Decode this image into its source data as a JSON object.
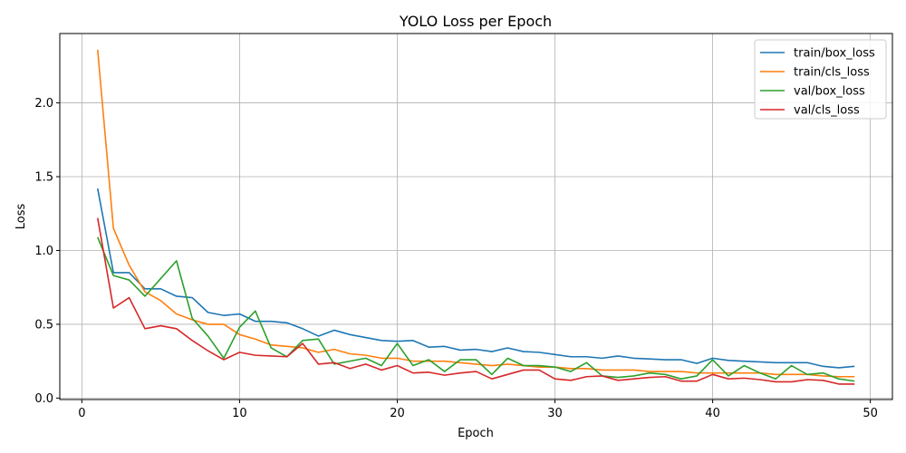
{
  "chart_data": {
    "type": "line",
    "title": "YOLO Loss per Epoch",
    "xlabel": "Epoch",
    "ylabel": "Loss",
    "xlim": [
      -1.4,
      51.4
    ],
    "ylim": [
      -0.01,
      2.47
    ],
    "xticks": [
      0,
      10,
      20,
      30,
      40,
      50
    ],
    "yticks": [
      0.0,
      0.5,
      1.0,
      1.5,
      2.0
    ],
    "xtick_labels": [
      "0",
      "10",
      "20",
      "30",
      "40",
      "50"
    ],
    "ytick_labels": [
      "0.0",
      "0.5",
      "1.0",
      "1.5",
      "2.0"
    ],
    "grid": true,
    "legend_position": "top-right",
    "x": [
      1,
      2,
      3,
      4,
      5,
      6,
      7,
      8,
      9,
      10,
      11,
      12,
      13,
      14,
      15,
      16,
      17,
      18,
      19,
      20,
      21,
      22,
      23,
      24,
      25,
      26,
      27,
      28,
      29,
      30,
      31,
      32,
      33,
      34,
      35,
      36,
      37,
      38,
      39,
      40,
      41,
      42,
      43,
      44,
      45,
      46,
      47,
      48,
      49
    ],
    "series": [
      {
        "name": "train/box_loss",
        "color": "#1f77b4",
        "values": [
          1.42,
          0.85,
          0.85,
          0.74,
          0.74,
          0.69,
          0.68,
          0.58,
          0.56,
          0.57,
          0.52,
          0.52,
          0.51,
          0.47,
          0.42,
          0.46,
          0.43,
          0.41,
          0.39,
          0.385,
          0.39,
          0.345,
          0.35,
          0.325,
          0.33,
          0.315,
          0.34,
          0.315,
          0.31,
          0.295,
          0.28,
          0.28,
          0.27,
          0.285,
          0.27,
          0.265,
          0.26,
          0.26,
          0.235,
          0.27,
          0.255,
          0.25,
          0.245,
          0.24,
          0.24,
          0.24,
          0.215,
          0.205,
          0.215
        ]
      },
      {
        "name": "train/cls_loss",
        "color": "#ff7f0e",
        "values": [
          2.36,
          1.15,
          0.9,
          0.72,
          0.66,
          0.57,
          0.53,
          0.5,
          0.5,
          0.43,
          0.4,
          0.36,
          0.35,
          0.34,
          0.31,
          0.33,
          0.3,
          0.29,
          0.27,
          0.27,
          0.25,
          0.25,
          0.25,
          0.24,
          0.23,
          0.22,
          0.23,
          0.22,
          0.21,
          0.21,
          0.2,
          0.2,
          0.19,
          0.19,
          0.19,
          0.18,
          0.18,
          0.18,
          0.17,
          0.17,
          0.17,
          0.17,
          0.17,
          0.16,
          0.16,
          0.16,
          0.15,
          0.145,
          0.145
        ]
      },
      {
        "name": "val/box_loss",
        "color": "#2ca02c",
        "values": [
          1.09,
          0.83,
          0.8,
          0.69,
          0.81,
          0.93,
          0.54,
          0.42,
          0.27,
          0.48,
          0.59,
          0.34,
          0.28,
          0.39,
          0.4,
          0.23,
          0.25,
          0.27,
          0.22,
          0.37,
          0.22,
          0.26,
          0.18,
          0.26,
          0.26,
          0.16,
          0.27,
          0.22,
          0.22,
          0.21,
          0.18,
          0.24,
          0.15,
          0.14,
          0.15,
          0.17,
          0.16,
          0.13,
          0.15,
          0.26,
          0.15,
          0.22,
          0.17,
          0.13,
          0.22,
          0.16,
          0.17,
          0.13,
          0.115
        ]
      },
      {
        "name": "val/cls_loss",
        "color": "#d62728",
        "values": [
          1.22,
          0.61,
          0.68,
          0.47,
          0.49,
          0.47,
          0.39,
          0.32,
          0.26,
          0.31,
          0.29,
          0.285,
          0.28,
          0.37,
          0.23,
          0.24,
          0.2,
          0.23,
          0.19,
          0.22,
          0.17,
          0.175,
          0.155,
          0.17,
          0.18,
          0.13,
          0.16,
          0.19,
          0.19,
          0.13,
          0.12,
          0.145,
          0.15,
          0.12,
          0.13,
          0.14,
          0.145,
          0.115,
          0.115,
          0.16,
          0.13,
          0.135,
          0.125,
          0.11,
          0.11,
          0.125,
          0.12,
          0.095,
          0.095
        ]
      }
    ]
  }
}
